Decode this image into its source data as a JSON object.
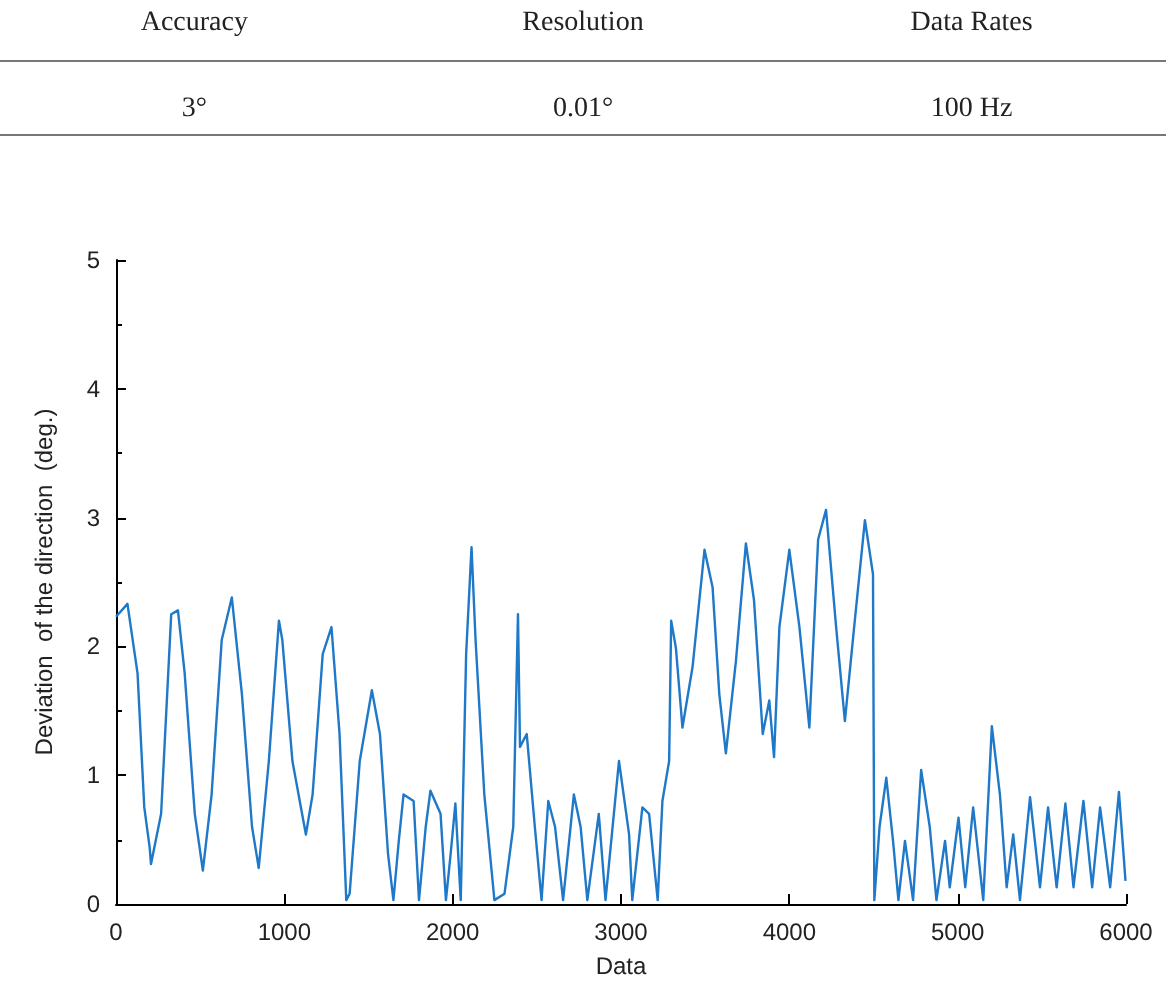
{
  "chart_data": {
    "type": "line",
    "xlabel": "Data",
    "ylabel": "Deviation  of the direction  (deg.)",
    "annotations": [
      "Accuracy",
      "Resolution",
      "Data  Rates",
      "3°",
      "0.01°",
      "100  Hz"
    ],
    "xlim": [
      0,
      6000
    ],
    "xticks": [
      0,
      1000,
      2000,
      3000,
      4000,
      5000,
      6000
    ],
    "ylim": [
      0,
      5
    ],
    "yticks": [
      0,
      1,
      2,
      3,
      4,
      5
    ],
    "grid": false,
    "marker": "none",
    "line_style": "solid",
    "series": [
      {
        "color": "#1f78c8",
        "x": [
          0,
          68,
          128,
          168,
          200,
          208,
          268,
          328,
          368,
          408,
          468,
          516,
          568,
          628,
          688,
          748,
          808,
          848,
          908,
          968,
          988,
          1048,
          1128,
          1168,
          1228,
          1280,
          1328,
          1368,
          1388,
          1448,
          1520,
          1568,
          1616,
          1648,
          1680,
          1708,
          1768,
          1800,
          1840,
          1868,
          1928,
          1960,
          1988,
          2016,
          2048,
          2080,
          2112,
          2136,
          2188,
          2248,
          2308,
          2360,
          2388,
          2400,
          2440,
          2488,
          2528,
          2568,
          2608,
          2656,
          2720,
          2760,
          2800,
          2868,
          2908,
          2988,
          3048,
          3067,
          3127,
          3167,
          3218,
          3246,
          3286,
          3298,
          3326,
          3365,
          3425,
          3496,
          3544,
          3584,
          3623,
          3683,
          3742,
          3790,
          3842,
          3881,
          3909,
          3941,
          4000,
          4060,
          4119,
          4171,
          4218,
          4278,
          4330,
          4385,
          4449,
          4497,
          4505,
          4536,
          4576,
          4616,
          4648,
          4687,
          4735,
          4783,
          4834,
          4874,
          4925,
          4953,
          5005,
          5045,
          5092,
          5152,
          5203,
          5251,
          5291,
          5330,
          5370,
          5430,
          5489,
          5537,
          5588,
          5640,
          5688,
          5747,
          5799,
          5846,
          5906,
          5958,
          5997
        ],
        "values": [
          2.23,
          2.33,
          1.79,
          0.75,
          0.44,
          0.31,
          0.7,
          2.25,
          2.28,
          1.79,
          0.7,
          0.26,
          0.85,
          2.05,
          2.38,
          1.63,
          0.6,
          0.28,
          1.11,
          2.2,
          2.05,
          1.11,
          0.54,
          0.85,
          1.94,
          2.15,
          1.32,
          0.03,
          0.08,
          1.11,
          1.66,
          1.32,
          0.39,
          0.03,
          0.49,
          0.85,
          0.8,
          0.03,
          0.6,
          0.88,
          0.7,
          0.03,
          0.39,
          0.78,
          0.03,
          1.94,
          2.77,
          2.05,
          0.85,
          0.03,
          0.08,
          0.6,
          2.25,
          1.22,
          1.32,
          0.6,
          0.03,
          0.8,
          0.6,
          0.03,
          0.85,
          0.6,
          0.03,
          0.7,
          0.03,
          1.11,
          0.54,
          0.03,
          0.75,
          0.7,
          0.03,
          0.8,
          1.11,
          2.2,
          1.99,
          1.37,
          1.84,
          2.75,
          2.46,
          1.63,
          1.17,
          1.89,
          2.8,
          2.36,
          1.32,
          1.58,
          1.14,
          2.15,
          2.75,
          2.15,
          1.37,
          2.83,
          3.06,
          2.15,
          1.42,
          2.15,
          2.98,
          2.56,
          0.03,
          0.6,
          0.98,
          0.49,
          0.03,
          0.49,
          0.03,
          1.04,
          0.6,
          0.03,
          0.49,
          0.13,
          0.67,
          0.13,
          0.75,
          0.03,
          1.38,
          0.85,
          0.13,
          0.54,
          0.03,
          0.83,
          0.13,
          0.75,
          0.13,
          0.78,
          0.13,
          0.8,
          0.13,
          0.75,
          0.13,
          0.87,
          0.18
        ]
      }
    ]
  }
}
